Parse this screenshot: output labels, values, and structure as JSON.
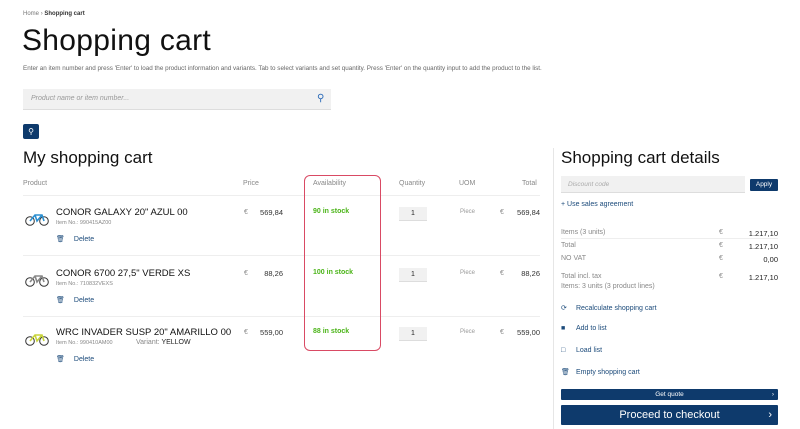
{
  "breadcrumb": {
    "home": "Home",
    "sep": "›",
    "current": "Shopping cart"
  },
  "title": "Shopping cart",
  "intro": "Enter an item number and press 'Enter' to load the product information and variants. Tab to select variants and set quantity. Press 'Enter' on the quantity input to add the product to the list.",
  "search": {
    "placeholder": "Product name or item number...",
    "icon": "search-icon"
  },
  "quick_order_icon": "drill-icon",
  "cart": {
    "title": "My shopping cart",
    "headers": {
      "product": "Product",
      "price": "Price",
      "availability": "Availability",
      "quantity": "Quantity",
      "uom": "UOM",
      "total": "Total"
    },
    "currency": "€",
    "delete_label": "Delete",
    "items": [
      {
        "name": "CONOR GALAXY 20\" AZUL 00",
        "item_no": "Item No.: 990415AZ00",
        "variant_label": "",
        "variant": "",
        "price": "569,84",
        "stock": "90 in stock",
        "qty": "1",
        "uom": "Piece",
        "total": "569,84",
        "bike_color": "#2b8fd0"
      },
      {
        "name": "CONOR 6700 27,5\" VERDE XS",
        "item_no": "Item No.: 710832VEXS",
        "variant_label": "",
        "variant": "",
        "price": "88,26",
        "stock": "100 in stock",
        "qty": "1",
        "uom": "Piece",
        "total": "88,26",
        "bike_color": "#888888"
      },
      {
        "name": "WRC INVADER SUSP 20\" AMARILLO 00",
        "item_no": "Item No.: 990410AM00",
        "variant_label": "Variant:",
        "variant": "YELLOW",
        "price": "559,00",
        "stock": "88 in stock",
        "qty": "1",
        "uom": "Piece",
        "total": "559,00",
        "bike_color": "#c8d43a"
      }
    ]
  },
  "details": {
    "title": "Shopping cart details",
    "discount_placeholder": "Discount code",
    "apply": "Apply",
    "sales_agreement": "+ Use sales agreement",
    "currency": "€",
    "rows": [
      {
        "label": "Items (3 units)",
        "value": "1.217,10"
      },
      {
        "label": "Total",
        "value": "1.217,10"
      },
      {
        "label": "NO VAT",
        "value": "0,00"
      },
      {
        "label": "Total incl. tax",
        "value": "1.217,10"
      }
    ],
    "summary": "Items: 3 units (3 product lines)",
    "actions": [
      {
        "label": "Recalculate shopping cart",
        "icon": "refresh-icon"
      },
      {
        "label": "Add to list",
        "icon": "save-icon"
      },
      {
        "label": "Load list",
        "icon": "folder-icon"
      },
      {
        "label": "Empty shopping cart",
        "icon": "trash-icon"
      }
    ],
    "get_quote": "Get quote",
    "checkout": "Proceed to checkout"
  },
  "colors": {
    "primary": "#0e3a6c",
    "stock": "#4bb418",
    "highlight": "#d94a64"
  }
}
